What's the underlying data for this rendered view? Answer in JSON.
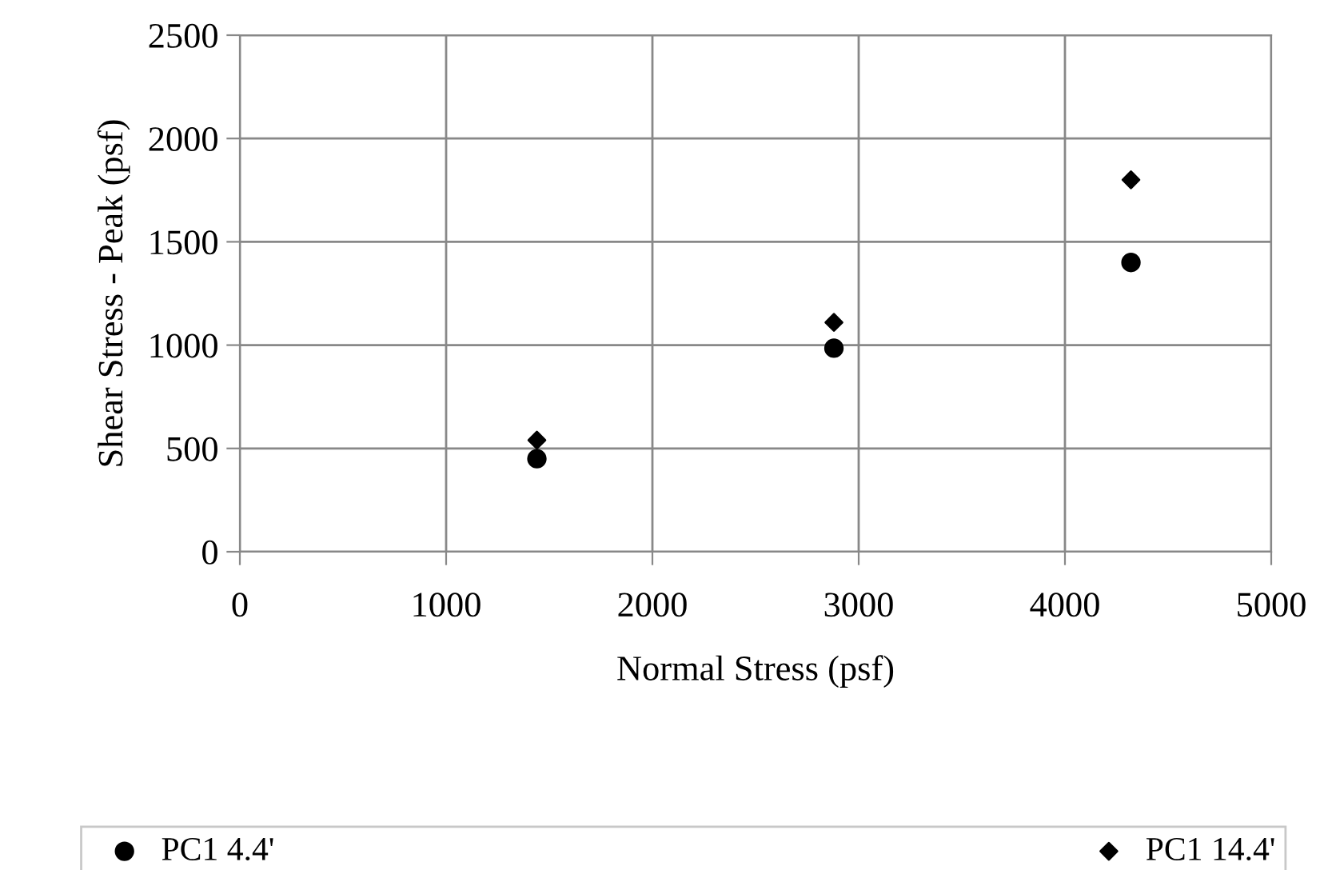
{
  "chart_data": {
    "type": "scatter",
    "xlabel": "Normal Stress (psf)",
    "ylabel": "Shear Stress - Peak (psf)",
    "xlim": [
      0,
      5000
    ],
    "xticks": [
      0,
      1000,
      2000,
      3000,
      4000,
      5000
    ],
    "ylim": [
      0,
      2500
    ],
    "yticks": [
      0,
      500,
      1000,
      1500,
      2000,
      2500
    ],
    "grid": true,
    "legend": "bottom",
    "series": [
      {
        "name": "PC1 4.4'",
        "color": "#000000",
        "marker": "circle",
        "x": [
          1440,
          2880,
          4320
        ],
        "values": [
          450,
          985,
          1400
        ]
      },
      {
        "name": "PC1 14.4'",
        "color": "#000000",
        "marker": "diamond",
        "x": [
          1440,
          2880,
          4320
        ],
        "values": [
          540,
          1110,
          1800
        ]
      }
    ]
  }
}
